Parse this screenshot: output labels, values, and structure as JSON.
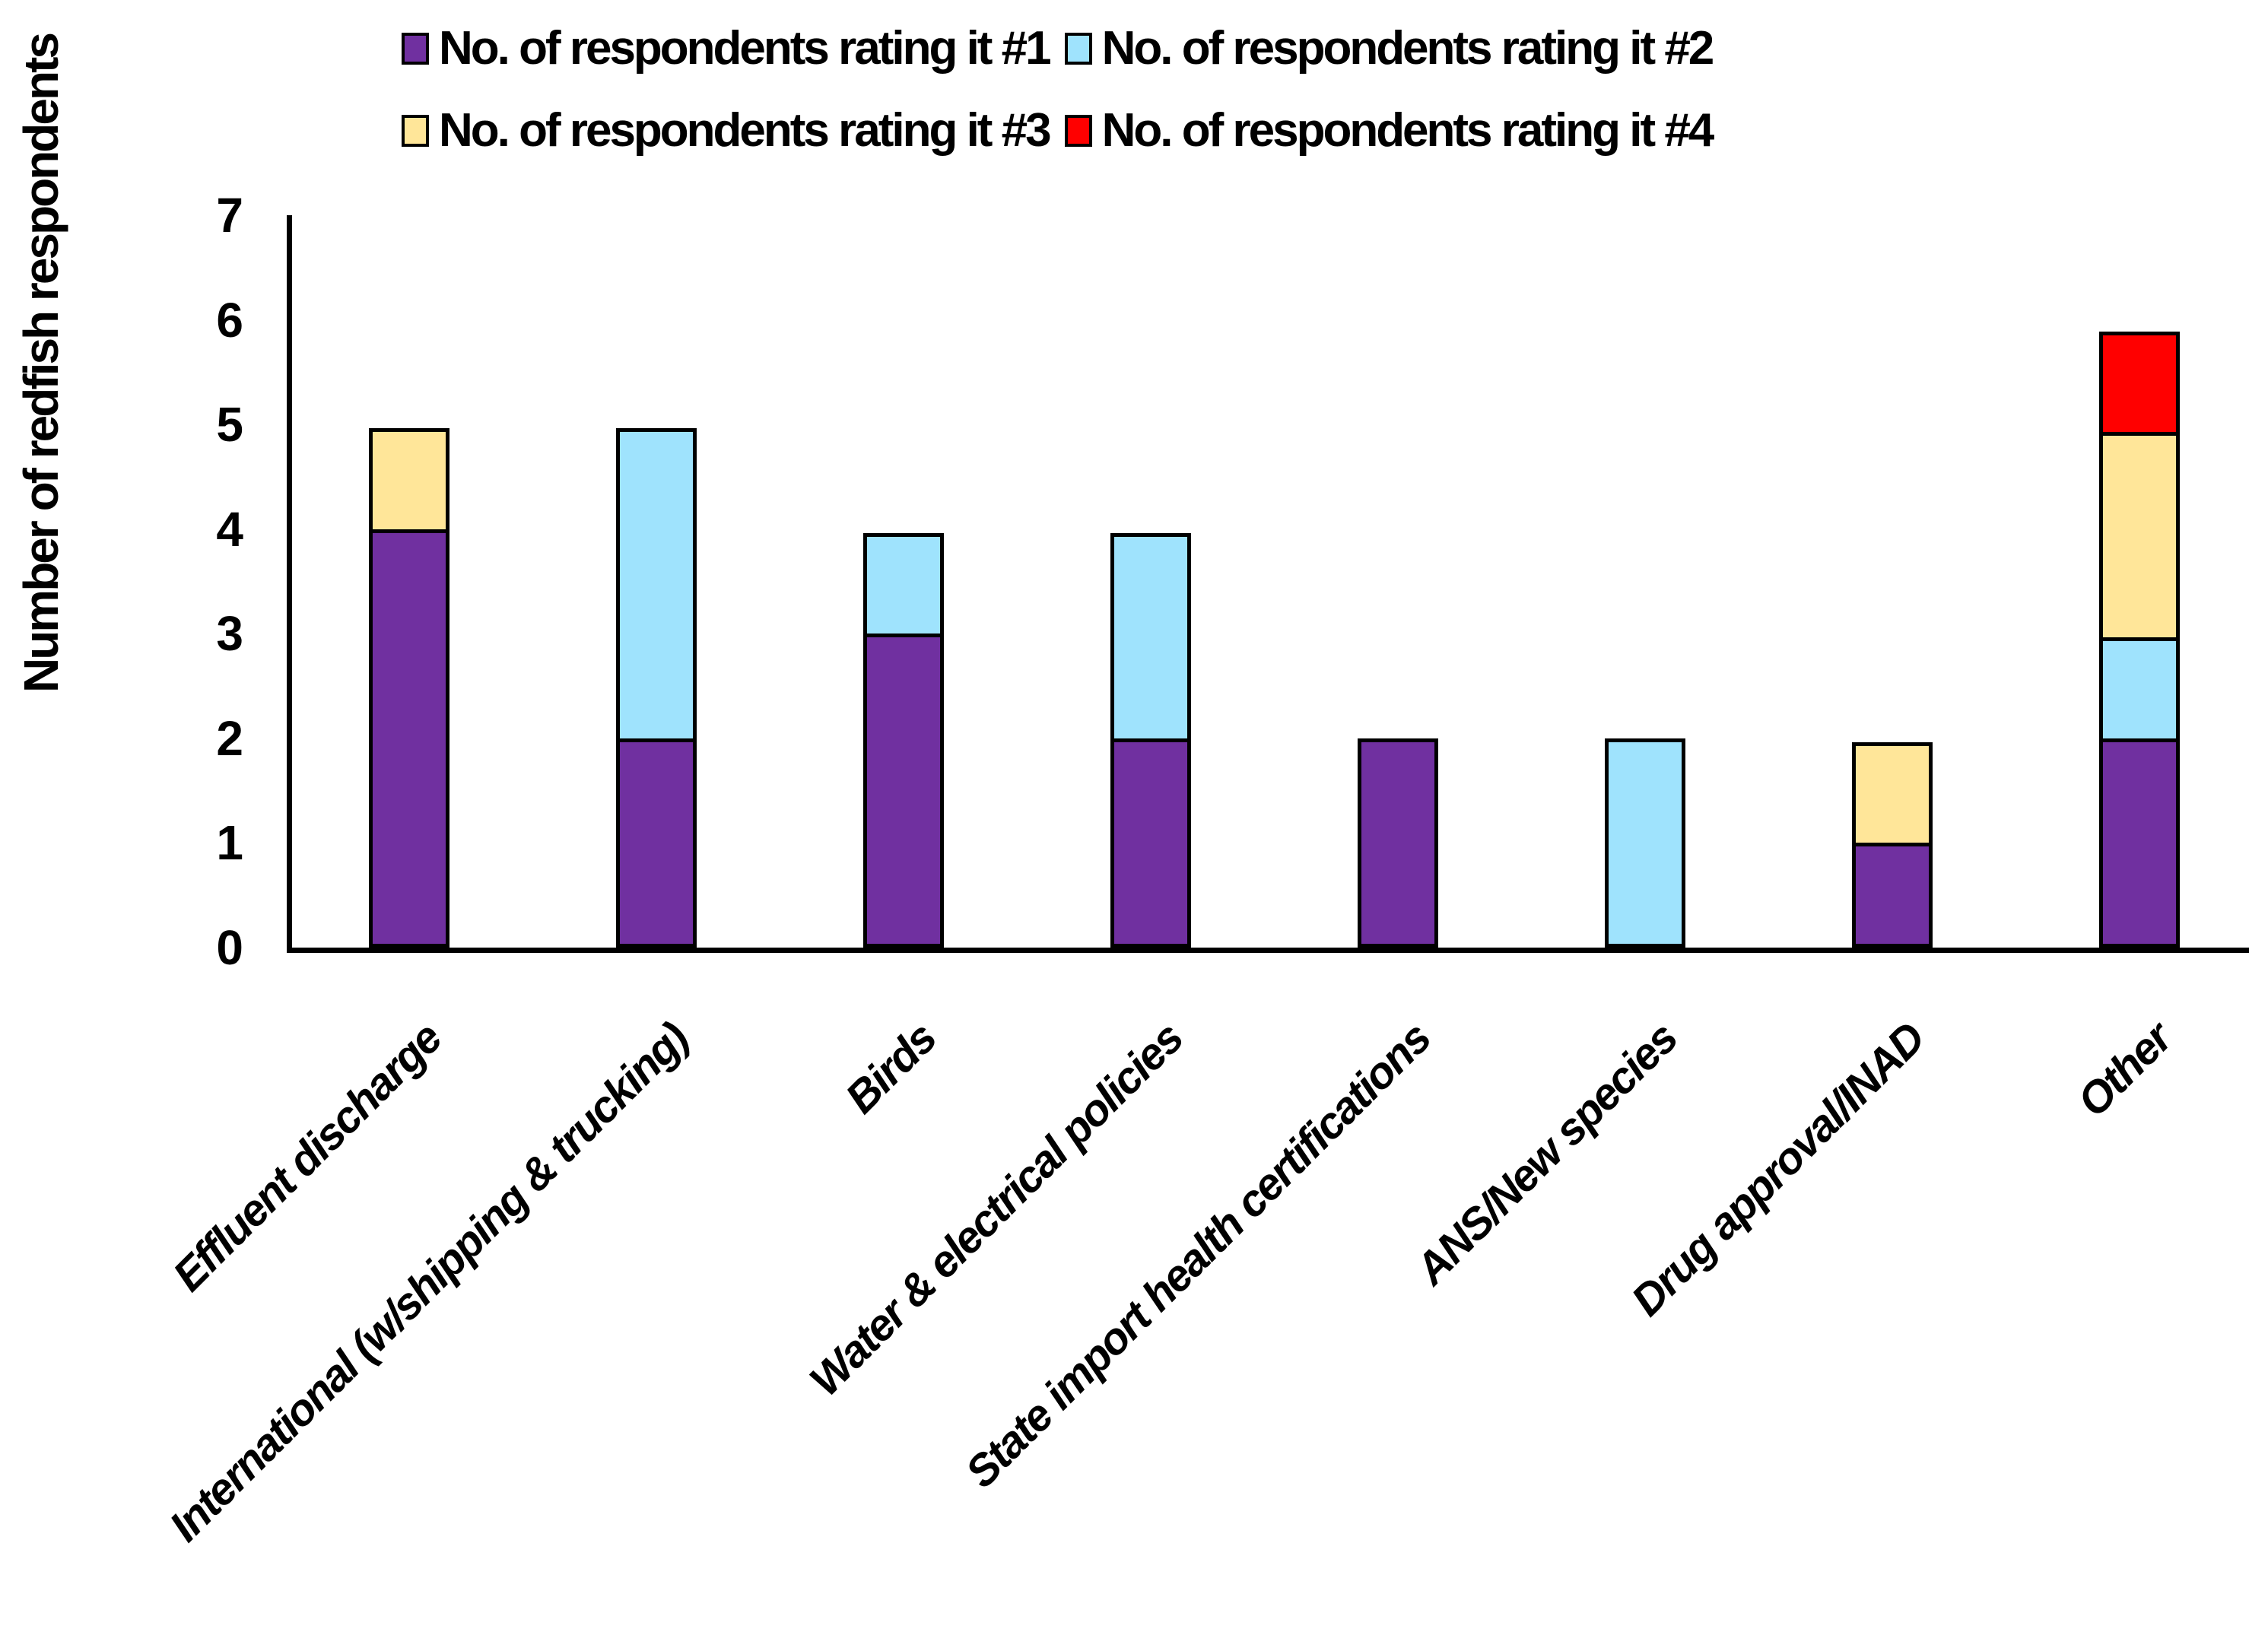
{
  "page": {
    "background": "#FFFFFF"
  },
  "chart_data": {
    "type": "bar",
    "stacked": true,
    "ylabel": "Number of redfish respondents",
    "xlabel": "",
    "ylim": [
      0,
      7
    ],
    "yticks": [
      0,
      1,
      2,
      3,
      4,
      5,
      6,
      7
    ],
    "grid": false,
    "legend_position": "top",
    "axis_color": "#000000",
    "bar_outline_color": "#000000",
    "categories": [
      "Effluent discharge",
      "International (w/shipping & trucking)",
      "Birds",
      "Water & electrical policies",
      "State import health certifications",
      "ANS/New species",
      "Drug approval/INAD",
      "Other"
    ],
    "series": [
      {
        "name": "No. of respondents rating it #1",
        "color": "#7030A0",
        "values": [
          4,
          2,
          3,
          2,
          2,
          0,
          1,
          2
        ]
      },
      {
        "name": "No. of respondents rating it #2",
        "color": "#9FE3FD",
        "values": [
          0,
          3,
          1,
          2,
          0,
          2,
          0,
          1
        ]
      },
      {
        "name": "No. of respondents rating it #3",
        "color": "#FFE699",
        "values": [
          1,
          0,
          0,
          0,
          0,
          0,
          1,
          2
        ]
      },
      {
        "name": "No. of respondents rating it #4",
        "color": "#FF0000",
        "values": [
          0,
          0,
          0,
          0,
          0,
          0,
          0,
          1
        ]
      }
    ],
    "totals": [
      5,
      5,
      4,
      4,
      2,
      2,
      2,
      6
    ]
  }
}
